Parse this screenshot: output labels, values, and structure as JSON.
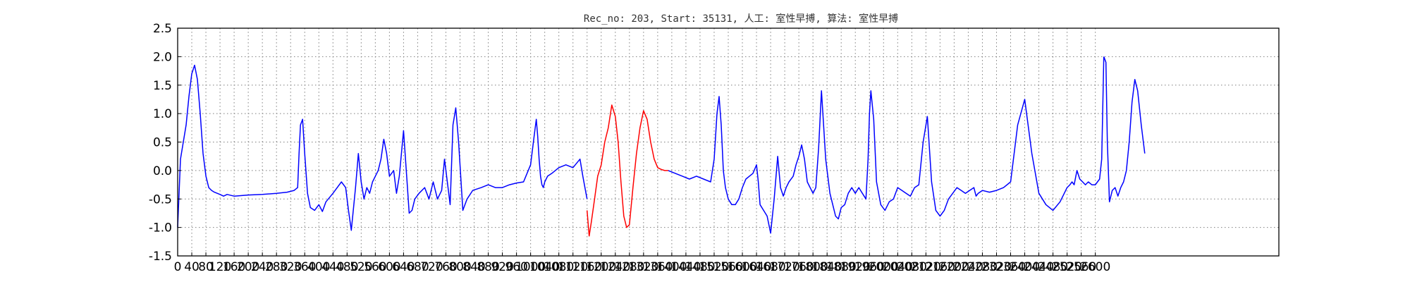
{
  "chart_data": {
    "type": "line",
    "title": "Rec_no: 203, Start: 35131, 人工: 室性早搏, 算法: 室性早搏",
    "xlabel": "",
    "ylabel": "",
    "xlim": [
      0,
      3120
    ],
    "ylim": [
      -1.5,
      2.5
    ],
    "yticks": [
      "2.5",
      "2.0",
      "1.5",
      "1.0",
      "0.5",
      "0.0",
      "-0.5",
      "-1.0",
      "-1.5"
    ],
    "xticks": [
      "0",
      "40",
      "80",
      "120",
      "160",
      "200",
      "240",
      "280",
      "320",
      "360",
      "400",
      "440",
      "480",
      "520",
      "560",
      "600",
      "640",
      "680",
      "720",
      "760",
      "800",
      "840",
      "880",
      "920",
      "960",
      "1000",
      "1040",
      "1080",
      "1120",
      "1160",
      "1200",
      "1240",
      "1280",
      "1320",
      "1360",
      "1400",
      "1440",
      "1480",
      "1520",
      "1560",
      "1600",
      "1640",
      "1680",
      "1720",
      "1760",
      "1800",
      "1840",
      "1880",
      "1920",
      "1960",
      "2000",
      "2040",
      "2080",
      "2120",
      "2160",
      "2200",
      "2240",
      "2280",
      "2320",
      "2360",
      "2400",
      "2440",
      "2480",
      "2520",
      "2560",
      "2600"
    ],
    "grid": true,
    "colors": {
      "normal": "#0000ff",
      "highlight": "#ff0000"
    },
    "series": [
      {
        "color": "#0000ff",
        "x": [
          0,
          8,
          16,
          24,
          32,
          40,
          48,
          56,
          64,
          72,
          80,
          88,
          96,
          104,
          112,
          120,
          130,
          140,
          160,
          200,
          240,
          280,
          310,
          330,
          340,
          344,
          348,
          354,
          360,
          368,
          376,
          388,
          400,
          410,
          420,
          440,
          452,
          464,
          476,
          484,
          492,
          504,
          512,
          520,
          528,
          536,
          544,
          552,
          560,
          568,
          576,
          584,
          592,
          600,
          612,
          620,
          628,
          640,
          650,
          656,
          664,
          672,
          684,
          700,
          712,
          724,
          736,
          748,
          756,
          764,
          772,
          780,
          788,
          796,
          808,
          820,
          836,
          860,
          880,
          900,
          920,
          940,
          960,
          980,
          1000,
          1010,
          1016,
          1020,
          1024,
          1028,
          1032,
          1036,
          1040,
          1048,
          1060,
          1080,
          1100,
          1120,
          1140,
          1148,
          1154,
          1160
        ],
        "y": [
          -1.0,
          0.2,
          0.5,
          0.8,
          1.3,
          1.7,
          1.85,
          1.6,
          1.0,
          0.3,
          -0.1,
          -0.3,
          -0.35,
          -0.38,
          -0.4,
          -0.42,
          -0.45,
          -0.42,
          -0.45,
          -0.43,
          -0.42,
          -0.4,
          -0.38,
          -0.35,
          -0.3,
          0.3,
          0.8,
          0.9,
          0.3,
          -0.4,
          -0.65,
          -0.7,
          -0.6,
          -0.72,
          -0.55,
          -0.4,
          -0.3,
          -0.2,
          -0.3,
          -0.7,
          -1.05,
          -0.3,
          0.3,
          -0.2,
          -0.5,
          -0.3,
          -0.4,
          -0.2,
          -0.1,
          0.0,
          0.2,
          0.55,
          0.3,
          -0.1,
          0.0,
          -0.4,
          -0.1,
          0.7,
          -0.2,
          -0.75,
          -0.7,
          -0.5,
          -0.4,
          -0.3,
          -0.5,
          -0.2,
          -0.5,
          -0.35,
          0.2,
          -0.2,
          -0.6,
          0.8,
          1.1,
          0.5,
          -0.7,
          -0.5,
          -0.35,
          -0.3,
          -0.25,
          -0.3,
          -0.3,
          -0.25,
          -0.22,
          -0.2,
          0.1,
          0.6,
          0.9,
          0.6,
          0.2,
          -0.1,
          -0.25,
          -0.3,
          -0.2,
          -0.1,
          -0.05,
          0.05,
          0.1,
          0.05,
          0.2,
          -0.1,
          -0.3,
          -0.5
        ]
      },
      {
        "color": "#ff0000",
        "x": [
          1160,
          1166,
          1172,
          1180,
          1190,
          1200,
          1210,
          1220,
          1230,
          1240,
          1248,
          1256,
          1264,
          1272,
          1280,
          1290,
          1300,
          1310,
          1320,
          1330,
          1340,
          1350,
          1360,
          1370,
          1380,
          1390
        ],
        "y": [
          -0.7,
          -1.15,
          -0.9,
          -0.55,
          -0.1,
          0.1,
          0.5,
          0.75,
          1.15,
          0.95,
          0.5,
          -0.2,
          -0.8,
          -1.0,
          -0.95,
          -0.3,
          0.3,
          0.75,
          1.05,
          0.9,
          0.5,
          0.2,
          0.05,
          0.02,
          0.0,
          0.0
        ]
      },
      {
        "color": "#0000ff",
        "x": [
          1390,
          1410,
          1430,
          1450,
          1470,
          1490,
          1510,
          1520,
          1528,
          1534,
          1540,
          1546,
          1552,
          1560,
          1570,
          1580,
          1590,
          1600,
          1610,
          1620,
          1630,
          1640,
          1645,
          1650,
          1660,
          1670,
          1680,
          1690,
          1700,
          1708,
          1716,
          1724,
          1732,
          1744,
          1752,
          1760,
          1768,
          1776,
          1784,
          1792,
          1800,
          1808,
          1816,
          1824,
          1836,
          1848,
          1856,
          1864,
          1872,
          1880,
          1890,
          1900,
          1910,
          1920,
          1930,
          1940,
          1950,
          1956,
          1960,
          1964,
          1972,
          1980,
          1992,
          2004,
          2016,
          2028,
          2040,
          2052,
          2064,
          2076,
          2088,
          2100,
          2112,
          2124,
          2136,
          2148,
          2160,
          2172,
          2184,
          2196,
          2208,
          2220,
          2232,
          2244,
          2256,
          2262,
          2268,
          2280,
          2300,
          2320,
          2340,
          2360,
          2380,
          2400,
          2420,
          2440,
          2460,
          2480,
          2500,
          2512,
          2520,
          2528,
          2534,
          2540,
          2548,
          2556,
          2564,
          2572,
          2580,
          2590,
          2600,
          2606,
          2612,
          2618,
          2624
        ],
        "y": [
          0.0,
          -0.05,
          -0.1,
          -0.15,
          -0.1,
          -0.15,
          -0.2,
          0.2,
          1.0,
          1.3,
          0.8,
          0.0,
          -0.3,
          -0.5,
          -0.6,
          -0.6,
          -0.5,
          -0.3,
          -0.15,
          -0.1,
          -0.05,
          0.1,
          -0.2,
          -0.6,
          -0.7,
          -0.8,
          -1.1,
          -0.5,
          0.25,
          -0.3,
          -0.45,
          -0.3,
          -0.2,
          -0.1,
          0.1,
          0.25,
          0.45,
          0.2,
          -0.2,
          -0.3,
          -0.4,
          -0.3,
          0.4,
          1.4,
          0.2,
          -0.4,
          -0.6,
          -0.8,
          -0.85,
          -0.65,
          -0.6,
          -0.4,
          -0.3,
          -0.4,
          -0.3,
          -0.4,
          -0.5,
          0.2,
          1.0,
          1.4,
          0.9,
          -0.2,
          -0.6,
          -0.7,
          -0.55,
          -0.5,
          -0.3,
          -0.35,
          -0.4,
          -0.45,
          -0.3,
          -0.25,
          0.5,
          0.95,
          -0.2,
          -0.7,
          -0.8,
          -0.7,
          -0.5,
          -0.4,
          -0.3,
          -0.35,
          -0.4,
          -0.35,
          -0.3,
          -0.45,
          -0.4,
          -0.35,
          -0.38,
          -0.35,
          -0.3,
          -0.2,
          0.8,
          1.25,
          0.3,
          -0.4,
          -0.6,
          -0.7,
          -0.55,
          -0.4,
          -0.3,
          -0.25,
          -0.2,
          -0.25,
          0.0,
          -0.15,
          -0.2,
          -0.25,
          -0.2,
          -0.25,
          -0.25,
          -0.2,
          -0.15,
          0.2,
          2.0
        ]
      },
      {
        "color": "#0000ff",
        "x": [
          2624,
          2630,
          2634,
          2640,
          2648,
          2656,
          2664,
          2672,
          2680,
          2688,
          2696,
          2704,
          2712,
          2720,
          2730,
          2740
        ],
        "y": [
          2.0,
          1.9,
          0.5,
          -0.55,
          -0.35,
          -0.3,
          -0.45,
          -0.3,
          -0.2,
          0.0,
          0.5,
          1.2,
          1.6,
          1.4,
          0.8,
          0.3
        ]
      }
    ]
  }
}
